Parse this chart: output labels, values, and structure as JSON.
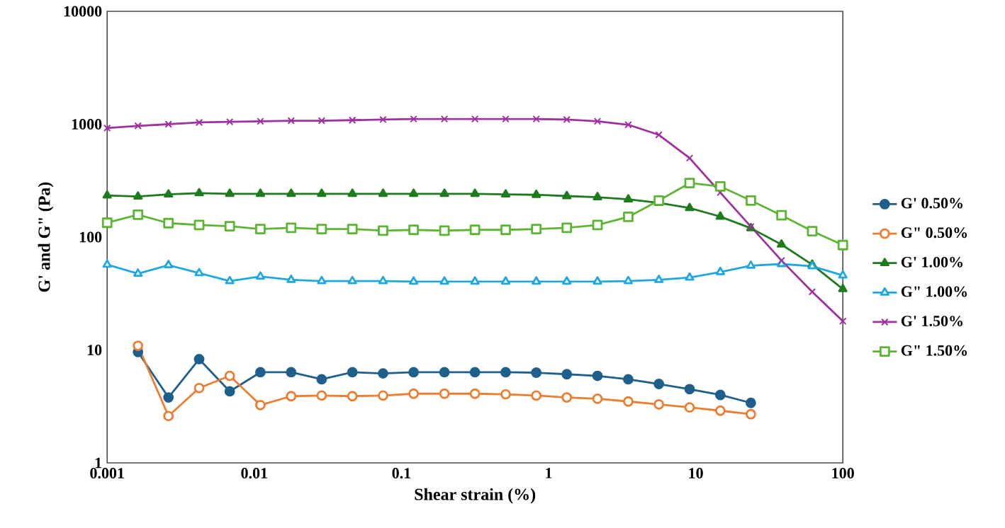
{
  "chart_data": {
    "type": "line",
    "xlabel": "Shear strain (%)",
    "ylabel": "G' and G\" (Pa)",
    "log": "xy",
    "legend": "right",
    "xlim": [
      0.001,
      100
    ],
    "ylim": [
      1,
      10000
    ],
    "xticks": [
      0.001,
      0.01,
      0.1,
      1,
      10,
      100
    ],
    "yticks": [
      1,
      10,
      100,
      1000,
      10000
    ],
    "x": [
      0.001,
      0.00162,
      0.00261,
      0.00422,
      0.00681,
      0.011,
      0.0178,
      0.0287,
      0.0464,
      0.075,
      0.121,
      0.196,
      0.316,
      0.511,
      0.825,
      1.33,
      2.15,
      3.48,
      5.62,
      9.09,
      14.7,
      23.7,
      38.3,
      61.9,
      100
    ],
    "series": [
      {
        "name": "G' 0.50%",
        "color": "#1f5f8b",
        "marker": "circle",
        "values": [
          null,
          9.6,
          3.8,
          8.3,
          4.3,
          6.35,
          6.35,
          5.5,
          6.35,
          6.2,
          6.35,
          6.35,
          6.35,
          6.35,
          6.3,
          6.1,
          5.9,
          5.5,
          5.0,
          4.5,
          4.0,
          3.4,
          null,
          null,
          null
        ]
      },
      {
        "name": "G\" 0.50%",
        "color": "#ed7d31",
        "marker": "circle",
        "values": [
          null,
          10.9,
          2.6,
          4.6,
          5.9,
          3.25,
          3.9,
          3.95,
          3.9,
          3.95,
          4.1,
          4.1,
          4.1,
          4.05,
          3.95,
          3.8,
          3.7,
          3.5,
          3.3,
          3.1,
          2.9,
          2.7,
          null,
          null,
          null
        ]
      },
      {
        "name": "G' 1.00%",
        "color": "#1e7b1e",
        "marker": "triangle",
        "values": [
          234,
          229,
          239,
          245,
          242,
          242,
          242,
          242,
          242,
          242,
          242,
          242,
          242,
          239,
          237,
          231,
          226,
          216,
          201,
          181,
          152,
          120,
          86,
          57,
          34.7
        ]
      },
      {
        "name": "G\" 1.00%",
        "color": "#1fa8e0",
        "marker": "triangle",
        "values": [
          57.1,
          47.5,
          56.5,
          48.0,
          40.8,
          44.8,
          41.8,
          40.8,
          40.8,
          40.8,
          40.4,
          40.4,
          40.4,
          40.4,
          40.4,
          40.4,
          40.4,
          40.8,
          41.8,
          43.8,
          49.1,
          55.8,
          57.8,
          55.2,
          45.8
        ]
      },
      {
        "name": "G' 1.50%",
        "color": "#a030a0",
        "marker": "cross",
        "values": [
          925,
          968,
          1000,
          1038,
          1050,
          1062,
          1074,
          1074,
          1087,
          1100,
          1112,
          1112,
          1112,
          1112,
          1112,
          1100,
          1062,
          989,
          805,
          501,
          248,
          124,
          62,
          32.8,
          18
        ]
      },
      {
        "name": "G\" 1.50%",
        "color": "#5db534",
        "marker": "square",
        "values": [
          134,
          158,
          133,
          128,
          125,
          118,
          121,
          118,
          118,
          114,
          116,
          114,
          116,
          116,
          118,
          121,
          128,
          151,
          211,
          301,
          281,
          211,
          156,
          113,
          85
        ]
      }
    ]
  }
}
